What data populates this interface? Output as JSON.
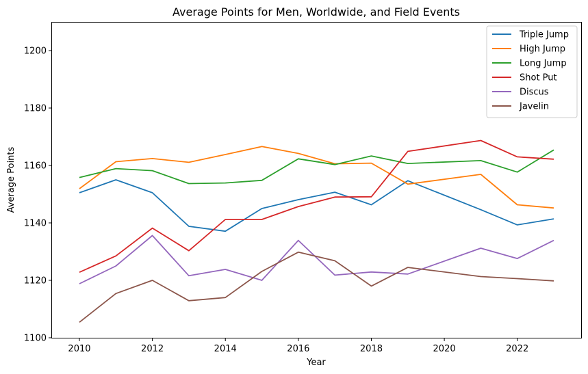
{
  "chart_data": {
    "type": "line",
    "title": "Average Points for Men, Worldwide, and Field Events",
    "xlabel": "Year",
    "ylabel": "Average Points",
    "xlim": [
      2009.25,
      2023.75
    ],
    "ylim": [
      1100,
      1210
    ],
    "xticks": [
      2010,
      2012,
      2014,
      2016,
      2018,
      2020,
      2022
    ],
    "yticks": [
      1100,
      1120,
      1140,
      1160,
      1180,
      1200
    ],
    "grid": false,
    "legend_position": "top-right",
    "series": [
      {
        "name": "Triple Jump",
        "color": "#1f77b4",
        "x": [
          2010,
          2011,
          2012,
          2013,
          2014,
          2015,
          2016,
          2017,
          2018,
          2019,
          2021,
          2022,
          2023
        ],
        "y": [
          1150.5,
          1155.0,
          1150.5,
          1138.8,
          1137.1,
          1145.0,
          1148.1,
          1150.7,
          1146.3,
          1154.7,
          1144.6,
          1139.3,
          1141.4
        ]
      },
      {
        "name": "High Jump",
        "color": "#ff7f0e",
        "x": [
          2010,
          2011,
          2012,
          2013,
          2014,
          2015,
          2016,
          2017,
          2018,
          2019,
          2021,
          2022,
          2023
        ],
        "y": [
          1151.9,
          1161.3,
          1162.4,
          1161.1,
          1163.8,
          1166.6,
          1164.2,
          1160.6,
          1160.8,
          1153.5,
          1156.9,
          1146.3,
          1145.2
        ]
      },
      {
        "name": "Long Jump",
        "color": "#2ca02c",
        "x": [
          2010,
          2011,
          2012,
          2013,
          2014,
          2015,
          2016,
          2017,
          2018,
          2019,
          2021,
          2022,
          2023
        ],
        "y": [
          1155.8,
          1158.9,
          1158.2,
          1153.7,
          1153.9,
          1154.8,
          1162.3,
          1160.3,
          1163.3,
          1160.7,
          1161.7,
          1157.7,
          1165.4
        ]
      },
      {
        "name": "Shot Put",
        "color": "#d62728",
        "x": [
          2010,
          2011,
          2012,
          2013,
          2014,
          2015,
          2016,
          2017,
          2018,
          2019,
          2021,
          2022,
          2023
        ],
        "y": [
          1122.8,
          1128.5,
          1138.2,
          1130.3,
          1141.2,
          1141.2,
          1145.7,
          1149.0,
          1149.1,
          1164.9,
          1168.7,
          1163.0,
          1162.2
        ]
      },
      {
        "name": "Discus",
        "color": "#9467bd",
        "x": [
          2010,
          2011,
          2012,
          2013,
          2014,
          2015,
          2016,
          2017,
          2018,
          2019,
          2021,
          2022,
          2023
        ],
        "y": [
          1118.8,
          1125.0,
          1135.6,
          1121.6,
          1123.8,
          1120.0,
          1133.9,
          1121.8,
          1122.9,
          1122.2,
          1131.2,
          1127.6,
          1133.9
        ]
      },
      {
        "name": "Javelin",
        "color": "#8c564b",
        "x": [
          2010,
          2011,
          2012,
          2013,
          2014,
          2015,
          2016,
          2017,
          2018,
          2019,
          2021,
          2022,
          2023
        ],
        "y": [
          1105.4,
          1115.4,
          1120.0,
          1112.9,
          1114.0,
          1123.1,
          1129.8,
          1126.8,
          1118.0,
          1124.5,
          1121.3,
          1120.6,
          1119.8
        ]
      }
    ]
  }
}
